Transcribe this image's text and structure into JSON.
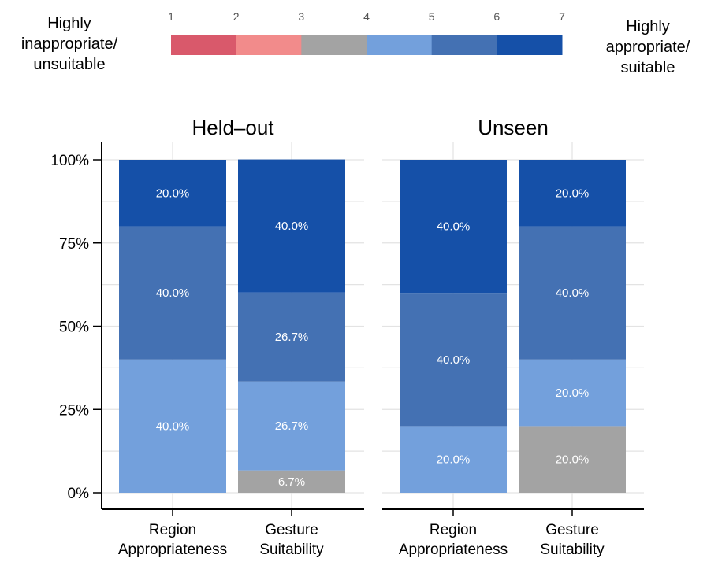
{
  "chart_data": {
    "type": "bar",
    "stacked": true,
    "legend": {
      "low_label": [
        "Highly",
        "inappropriate/",
        "unsuitable"
      ],
      "high_label": [
        "Highly",
        "appropriate/",
        "suitable"
      ],
      "levels": [
        {
          "value": 1,
          "label": "1",
          "color": "#d9596b"
        },
        {
          "value": 2,
          "label": "2",
          "color": "#f28b8b"
        },
        {
          "value": 3,
          "label": "3",
          "color": "#a3a3a3"
        },
        {
          "value": 4,
          "label": "4",
          "color": "#73a0dc"
        },
        {
          "value": 5,
          "label": "5",
          "color": "#4471b3"
        },
        {
          "value": 6,
          "label": "6",
          "color": "#1550a8"
        },
        {
          "value": 7,
          "label": "7",
          "color": ""
        }
      ]
    },
    "y_axis": {
      "ylim": [
        0,
        100
      ],
      "ticks": [
        0,
        25,
        50,
        75,
        100
      ],
      "tick_labels": [
        "0%",
        "25%",
        "50%",
        "75%",
        "100%"
      ]
    },
    "facets": [
      {
        "title": "Held–out",
        "categories": [
          [
            "Region",
            "Appropriateness"
          ],
          [
            "Gesture",
            "Suitability"
          ]
        ],
        "bars": [
          {
            "segments": [
              {
                "level": 4,
                "value": 40.0,
                "label": "40.0%"
              },
              {
                "level": 5,
                "value": 40.0,
                "label": "40.0%"
              },
              {
                "level": 6,
                "value": 20.0,
                "label": "20.0%"
              }
            ]
          },
          {
            "segments": [
              {
                "level": 3,
                "value": 6.7,
                "label": "6.7%"
              },
              {
                "level": 4,
                "value": 26.7,
                "label": "26.7%"
              },
              {
                "level": 5,
                "value": 26.7,
                "label": "26.7%"
              },
              {
                "level": 6,
                "value": 40.0,
                "label": "40.0%"
              }
            ]
          }
        ]
      },
      {
        "title": "Unseen",
        "categories": [
          [
            "Region",
            "Appropriateness"
          ],
          [
            "Gesture",
            "Suitability"
          ]
        ],
        "bars": [
          {
            "segments": [
              {
                "level": 4,
                "value": 20.0,
                "label": "20.0%"
              },
              {
                "level": 5,
                "value": 40.0,
                "label": "40.0%"
              },
              {
                "level": 6,
                "value": 40.0,
                "label": "40.0%"
              }
            ]
          },
          {
            "segments": [
              {
                "level": 3,
                "value": 20.0,
                "label": "20.0%"
              },
              {
                "level": 4,
                "value": 20.0,
                "label": "20.0%"
              },
              {
                "level": 5,
                "value": 40.0,
                "label": "40.0%"
              },
              {
                "level": 6,
                "value": 20.0,
                "label": "20.0%"
              }
            ]
          }
        ]
      }
    ]
  }
}
